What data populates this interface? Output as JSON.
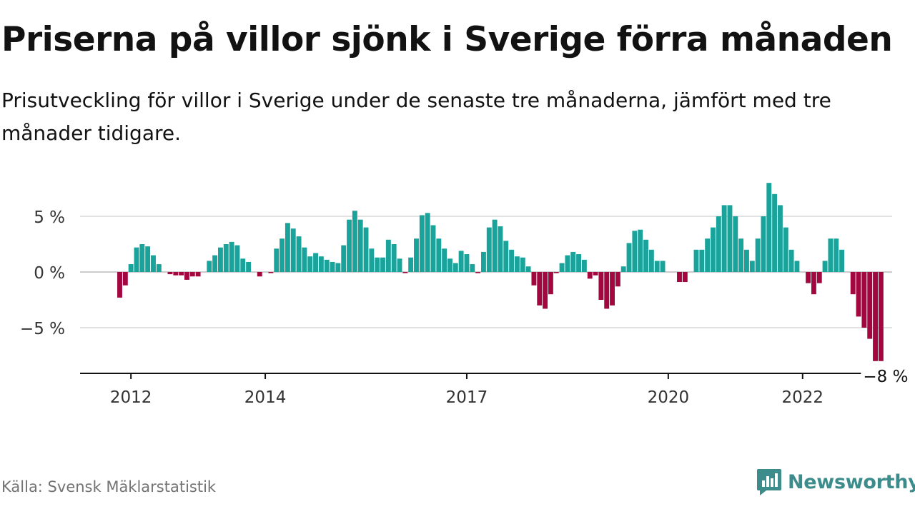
{
  "header": {
    "title": "Priserna på villor sjönk i Sverige förra månaden",
    "subtitle": "Prisutveckling för villor i Sverige under de senaste tre månaderna, jämfört med tre månader tidigare."
  },
  "footer": {
    "source": "Källa: Svensk Mäklarstatistik",
    "brand": "Newsworthy"
  },
  "colors": {
    "positive": "#1aa39b",
    "negative": "#a3073f",
    "gridline": "#d9d9d9",
    "zero_line": "#cccccc",
    "axis": "#121212",
    "brand": "#3c8c8c"
  },
  "chart_data": {
    "type": "bar",
    "title": "Priserna på villor sjönk i Sverige förra månaden",
    "subtitle": "Prisutveckling för villor i Sverige under de senaste tre månaderna, jämfört med tre månader tidigare.",
    "x_start": "2011-11",
    "x_end": "2022-12",
    "x_tick_labels": [
      {
        "date": "2012-01",
        "label": "2012"
      },
      {
        "date": "2014-01",
        "label": "2014"
      },
      {
        "date": "2017-01",
        "label": "2017"
      },
      {
        "date": "2020-01",
        "label": "2020"
      },
      {
        "date": "2022-01",
        "label": "2022"
      }
    ],
    "y_ticks": [
      -5,
      0,
      5
    ],
    "y_tick_labels": [
      "−5 %",
      "0 %",
      "5 %"
    ],
    "ylim": [
      -9,
      8.5
    ],
    "grid": true,
    "last_value_label": "−8 %",
    "values": [
      -2.3,
      -1.2,
      0.7,
      2.2,
      2.5,
      2.3,
      1.5,
      0.7,
      0,
      -0.2,
      -0.3,
      -0.3,
      -0.7,
      -0.4,
      -0.4,
      0,
      1,
      1.5,
      2.2,
      2.5,
      2.7,
      2.4,
      1.2,
      0.9,
      0,
      -0.4,
      0,
      -0.1,
      2.1,
      3,
      4.4,
      3.9,
      3.2,
      2.2,
      1.4,
      1.7,
      1.4,
      1.1,
      0.9,
      0.8,
      2.4,
      4.7,
      5.5,
      4.7,
      4,
      2.1,
      1.3,
      1.3,
      2.9,
      2.5,
      1.2,
      -0.1,
      1.3,
      3,
      5.1,
      5.3,
      4.2,
      3,
      2.1,
      1.2,
      0.8,
      1.9,
      1.6,
      0.7,
      -0.1,
      1.8,
      4,
      4.7,
      4.1,
      2.8,
      2,
      1.4,
      1.3,
      0.5,
      -1.2,
      -3,
      -3.3,
      -2,
      -0.1,
      0.8,
      1.5,
      1.8,
      1.6,
      1.1,
      -0.6,
      -0.3,
      -2.5,
      -3.3,
      -3,
      -1.3,
      0.5,
      2.6,
      3.7,
      3.8,
      2.9,
      2,
      1,
      1,
      0,
      0,
      -0.9,
      -0.9,
      0,
      2,
      2,
      3,
      4,
      5,
      6,
      6,
      5,
      3,
      2,
      1,
      3,
      5,
      8,
      7,
      6,
      4,
      2,
      1,
      0,
      -1,
      -2,
      -1,
      1,
      3,
      3,
      2,
      0,
      -2,
      -4,
      -5,
      -6,
      -8,
      -8
    ]
  }
}
